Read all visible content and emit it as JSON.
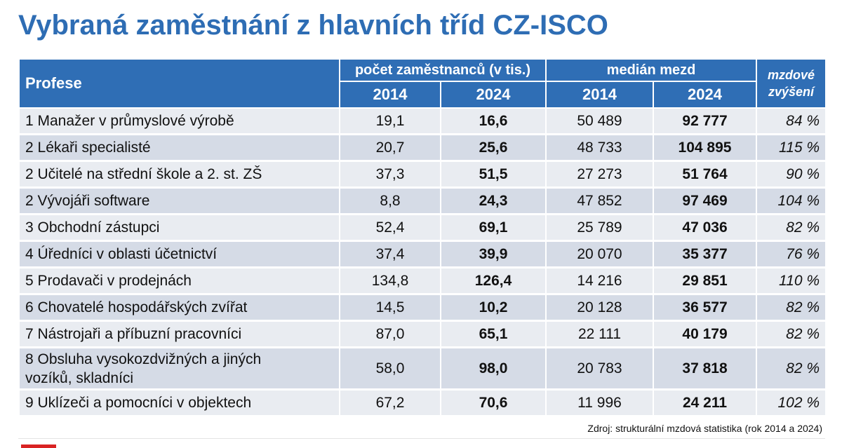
{
  "title": "Vybraná zaměstnání z hlavních tříd CZ-ISCO",
  "table": {
    "header": {
      "profession": "Profese",
      "employees_group": "počet zaměstnanců (v tis.)",
      "median_group": "medián mezd",
      "raise_group": "mzdové zvýšení",
      "years": [
        "2014",
        "2024",
        "2014",
        "2024"
      ]
    },
    "rows": [
      {
        "name": "1 Manažer v průmyslové výrobě",
        "emp_2014": "19,1",
        "emp_2024": "16,6",
        "wage_2014": "50 489",
        "wage_2024": "92 777",
        "raise": "84 %"
      },
      {
        "name": "2 Lékaři specialisté",
        "emp_2014": "20,7",
        "emp_2024": "25,6",
        "wage_2014": "48 733",
        "wage_2024": "104 895",
        "raise": "115 %"
      },
      {
        "name": "2 Učitelé na střední škole a 2. st. ZŠ",
        "emp_2014": "37,3",
        "emp_2024": "51,5",
        "wage_2014": "27 273",
        "wage_2024": "51 764",
        "raise": "90 %"
      },
      {
        "name": "2 Vývojáři software",
        "emp_2014": "8,8",
        "emp_2024": "24,3",
        "wage_2014": "47 852",
        "wage_2024": "97 469",
        "raise": "104 %"
      },
      {
        "name": "3 Obchodní zástupci",
        "emp_2014": "52,4",
        "emp_2024": "69,1",
        "wage_2014": "25 789",
        "wage_2024": "47 036",
        "raise": "82 %"
      },
      {
        "name": "4 Úředníci v oblasti účetnictví",
        "emp_2014": "37,4",
        "emp_2024": "39,9",
        "wage_2014": "20 070",
        "wage_2024": "35 377",
        "raise": "76 %"
      },
      {
        "name": "5 Prodavači v prodejnách",
        "emp_2014": "134,8",
        "emp_2024": "126,4",
        "wage_2014": "14 216",
        "wage_2024": "29 851",
        "raise": "110 %"
      },
      {
        "name": "6 Chovatelé hospodářských zvířat",
        "emp_2014": "14,5",
        "emp_2024": "10,2",
        "wage_2014": "20 128",
        "wage_2024": "36 577",
        "raise": "82 %"
      },
      {
        "name": "7 Nástrojaři a příbuzní pracovníci",
        "emp_2014": "87,0",
        "emp_2024": "65,1",
        "wage_2014": "22 111",
        "wage_2024": "40 179",
        "raise": "82 %"
      },
      {
        "name": "8 Obsluha vysokozdvižných a jiných",
        "name_line2": "vozíků, skladníci",
        "emp_2014": "58,0",
        "emp_2024": "98,0",
        "wage_2014": "20 783",
        "wage_2024": "37 818",
        "raise": "82 %"
      },
      {
        "name": "9 Uklízeči a pomocníci v objektech",
        "emp_2014": "67,2",
        "emp_2024": "70,6",
        "wage_2014": "11 996",
        "wage_2024": "24 211",
        "raise": "102 %"
      }
    ]
  },
  "source": "Zdroj: strukturální mzdová statistika (rok 2014 a 2024)",
  "colors": {
    "title": "#2e6db4",
    "header_bg": "#2f6eb5",
    "row_light": "#e9ecf1",
    "row_dark": "#d5dbe6",
    "accent_red": "#d92323"
  }
}
